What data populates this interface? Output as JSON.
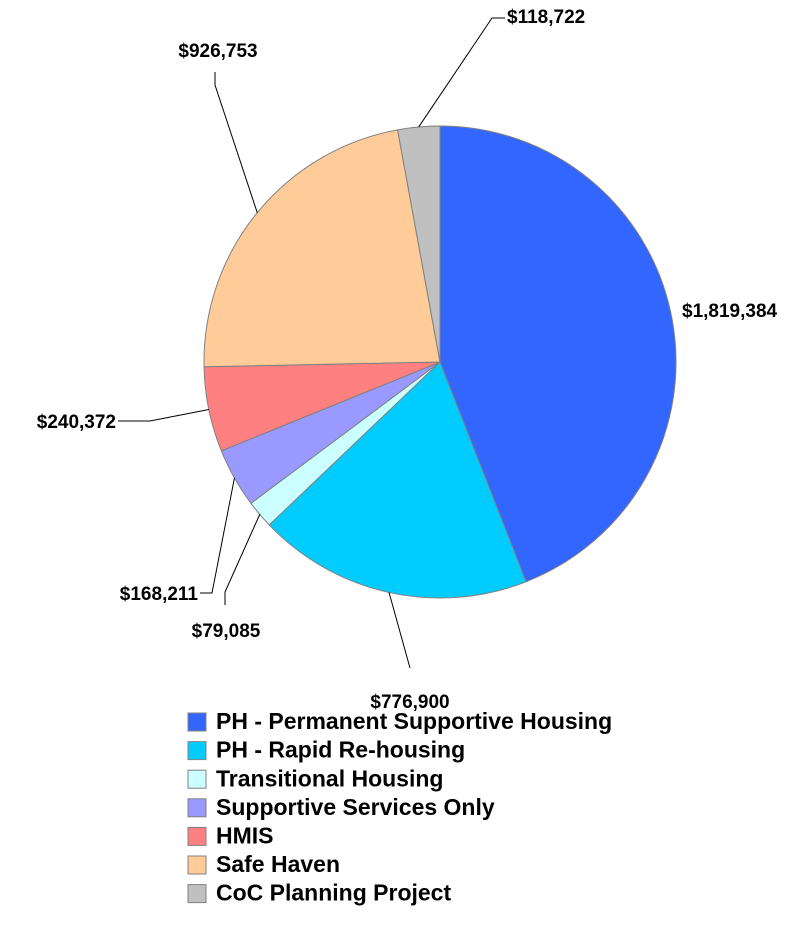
{
  "chart_data": {
    "type": "pie",
    "categories": [
      "PH - Permanent Supportive Housing",
      "PH - Rapid Re-housing",
      "Transitional Housing",
      "Supportive Services Only",
      "HMIS",
      "Safe Haven",
      "CoC Planning Project"
    ],
    "values": [
      1819384,
      776900,
      79085,
      168211,
      240372,
      926753,
      118722
    ],
    "value_labels": [
      "$1,819,384",
      "$776,900",
      "$79,085",
      "$168,211",
      "$240,372",
      "$926,753",
      "$118,722"
    ],
    "colors": [
      "#3366ff",
      "#00ccff",
      "#ccffff",
      "#9999ff",
      "#ff8080",
      "#ffcc99",
      "#c0c0c0"
    ],
    "legend": "bottom"
  }
}
